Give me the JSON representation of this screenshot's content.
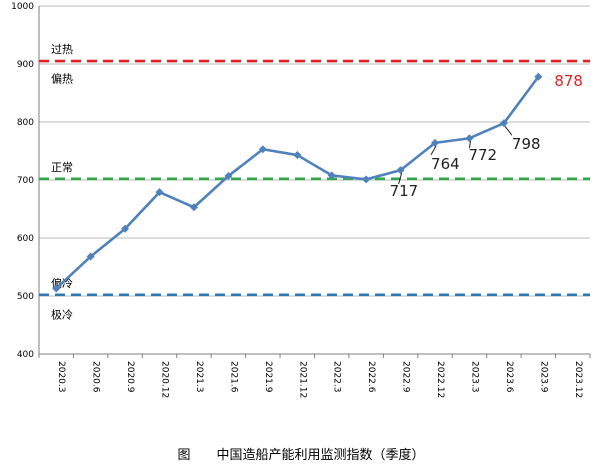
{
  "chart_data": {
    "type": "line",
    "title": "",
    "caption": "图　　中国造船产能利用监测指数（季度）",
    "xlabel": "",
    "ylabel": "",
    "ylim": [
      400,
      1000
    ],
    "yticks": [
      "400",
      "500",
      "600",
      "700",
      "800",
      "900",
      "1000"
    ],
    "grid": true,
    "categories": [
      "2020.3",
      "2020.6",
      "2020.9",
      "2020.12",
      "2021.3",
      "2021.6",
      "2021.9",
      "2021.12",
      "2022.3",
      "2022.6",
      "2022.9",
      "2022.12",
      "2023.3",
      "2023.6",
      "2023.9",
      "2023.12"
    ],
    "series": [
      {
        "name": "",
        "color": "#4f81bd",
        "values": [
          513,
          568,
          616,
          679,
          653,
          707,
          753,
          743,
          708,
          701,
          717,
          764,
          772,
          798,
          878,
          null
        ]
      }
    ],
    "reference_lines": [
      {
        "id": "overheat",
        "value": 905,
        "color": "#e41f1f",
        "label": "过热"
      },
      {
        "id": "normal",
        "value": 702,
        "color": "#2eaa4a",
        "label": "正常"
      },
      {
        "id": "cold",
        "value": 502,
        "color": "#2f79b5",
        "label": "极冷"
      }
    ],
    "zone_labels": [
      {
        "label": "偏热",
        "value": 875
      },
      {
        "label": "偏冷",
        "value": 522
      },
      {
        "label": "极冷",
        "value": 468
      }
    ],
    "annotations": [
      {
        "text": "717",
        "index": 10,
        "color": "#222222"
      },
      {
        "text": "764",
        "index": 11,
        "color": "#222222"
      },
      {
        "text": "772",
        "index": 12,
        "color": "#222222"
      },
      {
        "text": "798",
        "index": 13,
        "color": "#222222"
      },
      {
        "text": "878",
        "index": 14,
        "color": "#e41f1f"
      }
    ]
  }
}
